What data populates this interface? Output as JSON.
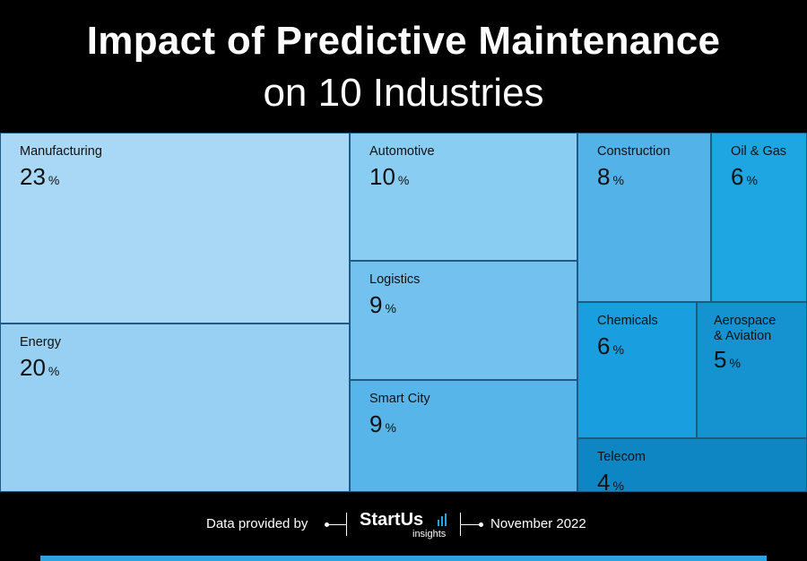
{
  "header": {
    "title_line1": "Impact of Predictive Maintenance",
    "title_line2": "on 10 Industries"
  },
  "chart_data": {
    "type": "treemap",
    "title": "Impact of Predictive Maintenance on 10 Industries",
    "unit": "%",
    "items": [
      {
        "label": "Manufacturing",
        "value": 23,
        "color": "#a8d8f6"
      },
      {
        "label": "Energy",
        "value": 20,
        "color": "#97d0f3"
      },
      {
        "label": "Automotive",
        "value": 10,
        "color": "#8acdf2"
      },
      {
        "label": "Logistics",
        "value": 9,
        "color": "#72c1ee"
      },
      {
        "label": "Smart City",
        "value": 9,
        "color": "#58b5e9"
      },
      {
        "label": "Construction",
        "value": 8,
        "color": "#53b2e7"
      },
      {
        "label": "Oil & Gas",
        "value": 6,
        "color": "#1ea6e3"
      },
      {
        "label": "Chemicals",
        "value": 6,
        "color": "#199fdf"
      },
      {
        "label": "Aerospace & Aviation",
        "value": 5,
        "color": "#1592d0"
      },
      {
        "label": "Telecom",
        "value": 4,
        "color": "#0f86c4"
      }
    ]
  },
  "footer": {
    "provided_by": "Data provided by",
    "brand_name": "StartUs",
    "brand_sub": "insights",
    "date": "November 2022"
  },
  "colors": {
    "background": "#000000",
    "accent": "#2aa3e0"
  }
}
